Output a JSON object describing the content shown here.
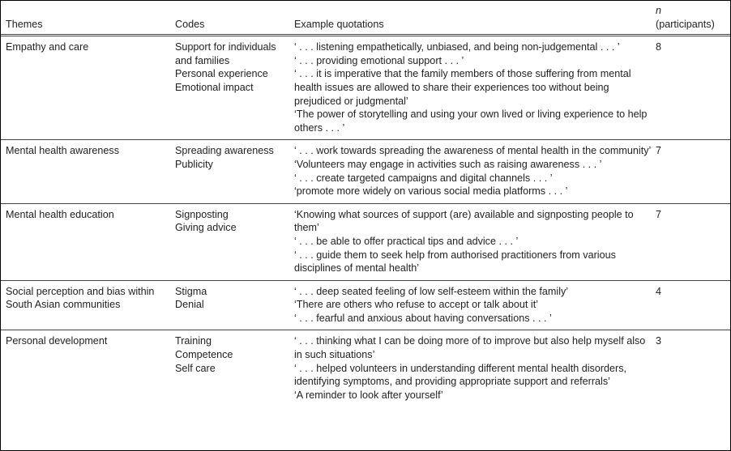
{
  "table": {
    "headers": {
      "themes": "Themes",
      "codes": "Codes",
      "quotations": "Example quotations",
      "n_symbol": "n",
      "n_label": "(participants)"
    },
    "rows": [
      {
        "theme": "Empathy and care",
        "codes": [
          "Support for individuals and families",
          "Personal experience",
          "Emotional impact"
        ],
        "quotes": [
          "‘ . . . listening empathetically, unbiased, and being non-judgemental . . . ’",
          "‘ . . . providing emotional support . . . ’",
          "‘ . . . it is imperative that the family members of those suffering from mental health issues are allowed to share their experiences too without being prejudiced or judgmental’",
          "‘The power of storytelling and using your own lived or living experience to help others . . . ’"
        ],
        "n": "8"
      },
      {
        "theme": "Mental health awareness",
        "codes": [
          "Spreading awareness",
          "Publicity"
        ],
        "quotes": [
          "‘ . . . work towards spreading the awareness of mental health in the community’",
          "‘Volunteers may engage in activities such as raising awareness . . . ’",
          "‘ . . . create targeted campaigns and digital channels . . . ’",
          "‘promote more widely on various social media platforms . . . ’"
        ],
        "n": "7"
      },
      {
        "theme": "Mental health education",
        "codes": [
          "Signposting",
          "Giving advice"
        ],
        "quotes": [
          "‘Knowing what sources of support (are) available and signposting people to them’",
          "‘ . . . be able to offer practical tips and advice . . . ’",
          "‘ . . . guide them to seek help from authorised practitioners from various disciplines of mental health’"
        ],
        "n": "7"
      },
      {
        "theme": "Social perception and bias within South Asian communities",
        "codes": [
          "Stigma",
          "Denial"
        ],
        "quotes": [
          "‘ . . . deep seated feeling of low self-esteem within the family’",
          "‘There are others who refuse to accept or talk about it’",
          "‘ . . . fearful and anxious about having conversations . . . ’"
        ],
        "n": "4"
      },
      {
        "theme": "Personal development",
        "codes": [
          "Training",
          "Competence",
          "Self care"
        ],
        "quotes": [
          "‘ . . . thinking what I can be doing more of to improve but also help myself also in such situations’",
          "‘ . . . helped volunteers in understanding different mental health disorders, identifying symptoms, and providing appropriate support and referrals’",
          "‘A reminder to look after yourself’"
        ],
        "n": "3"
      }
    ]
  }
}
